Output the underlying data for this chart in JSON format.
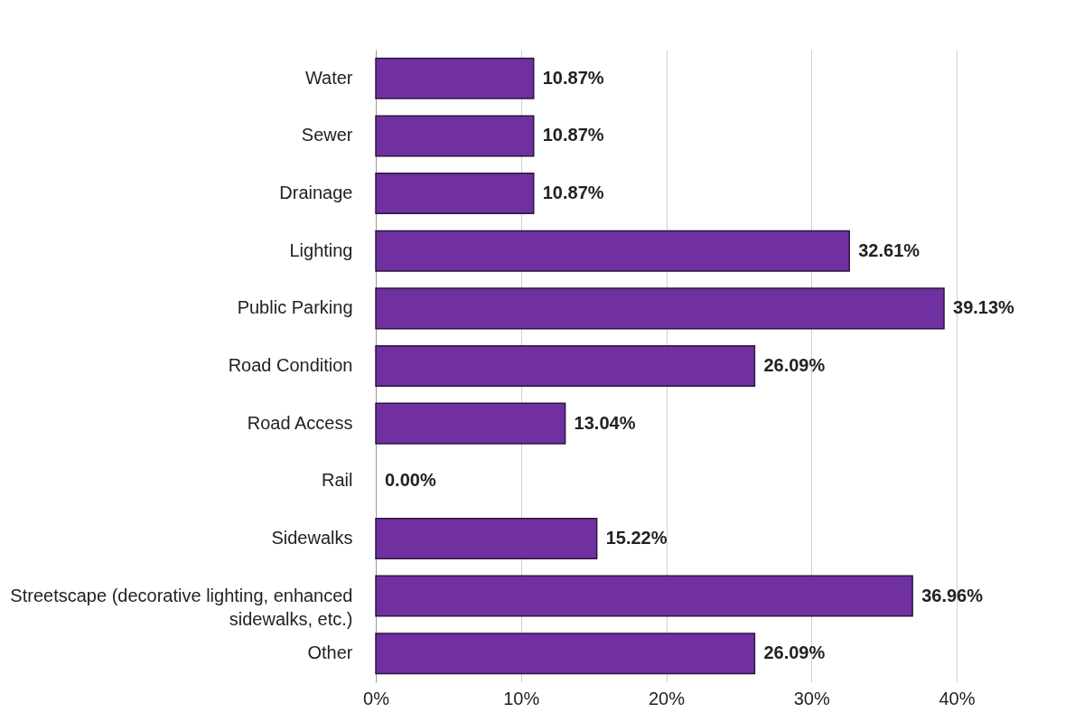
{
  "chart_data": {
    "type": "bar",
    "orientation": "horizontal",
    "categories": [
      "Water",
      "Sewer",
      "Drainage",
      "Lighting",
      "Public Parking",
      "Road Condition",
      "Road Access",
      "Rail",
      "Sidewalks",
      "Streetscape (decorative lighting, enhanced sidewalks, etc.)",
      "Other"
    ],
    "values": [
      10.87,
      10.87,
      10.87,
      32.61,
      39.13,
      26.09,
      13.04,
      0.0,
      15.22,
      36.96,
      26.09
    ],
    "value_labels": [
      "10.87%",
      "10.87%",
      "10.87%",
      "32.61%",
      "39.13%",
      "26.09%",
      "13.04%",
      "0.00%",
      "15.22%",
      "36.96%",
      "26.09%"
    ],
    "color": "#7030a0",
    "xlim": [
      0,
      40
    ],
    "xticks": [
      {
        "value": 0,
        "label": "0%"
      },
      {
        "value": 10,
        "label": "10%"
      },
      {
        "value": 20,
        "label": "20%"
      },
      {
        "value": 30,
        "label": "30%"
      },
      {
        "value": 40,
        "label": "40%"
      }
    ],
    "grid": "x"
  }
}
